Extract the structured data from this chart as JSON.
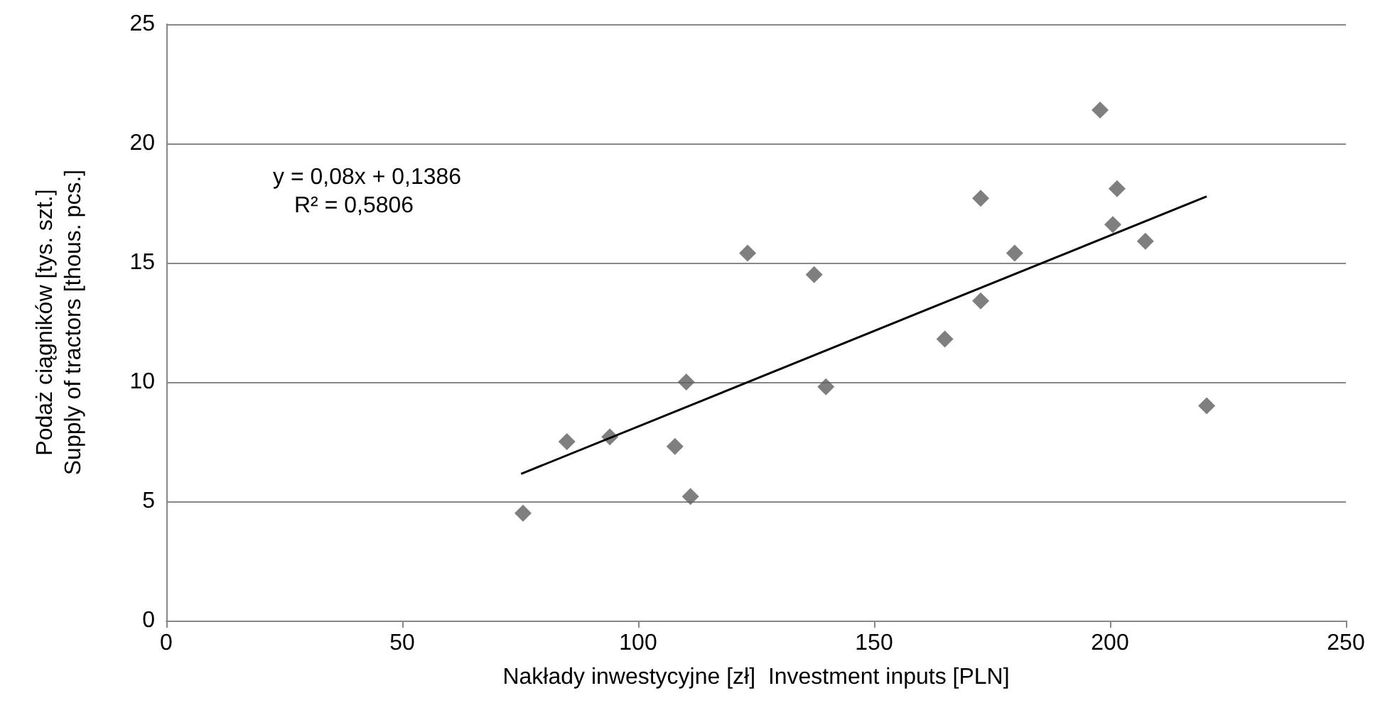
{
  "chart_data": {
    "type": "scatter",
    "xlabel": "Nakłady inwestycyjne [zł]  Investment inputs [PLN]",
    "ylabel": "Podaż ciągników [tys. szt.]\nSupply of tractors [thous. pcs.]",
    "annotations": [
      "y = 0,08x + 0,1386",
      "R² = 0,5806"
    ],
    "series": [
      {
        "color": "#5f5f5f",
        "x": [
          75.6,
          84.9,
          94,
          107.8,
          110.2,
          111.1,
          123.2,
          137.3,
          139.8,
          165,
          172.6,
          172.6,
          179.8,
          197.9,
          200.6,
          201.5,
          207.5,
          220.5
        ],
        "values": [
          4.5,
          7.5,
          7.7,
          7.3,
          10.0,
          5.2,
          15.4,
          14.5,
          9.8,
          11.8,
          17.7,
          13.4,
          15.4,
          21.4,
          16.6,
          18.1,
          15.9,
          9.0
        ]
      },
      {
        "type": "line",
        "color": "#000000",
        "marker": "none",
        "x": [
          75.2,
          220.5
        ],
        "values": [
          6.15,
          17.78
        ]
      }
    ],
    "xlim": [
      0,
      250
    ],
    "xticks": [
      0,
      50,
      100,
      150,
      200,
      250
    ],
    "ylim": [
      0,
      25
    ],
    "yticks": [
      0,
      5,
      10,
      15,
      20,
      25
    ],
    "grid": "y",
    "marker": "diamond"
  }
}
